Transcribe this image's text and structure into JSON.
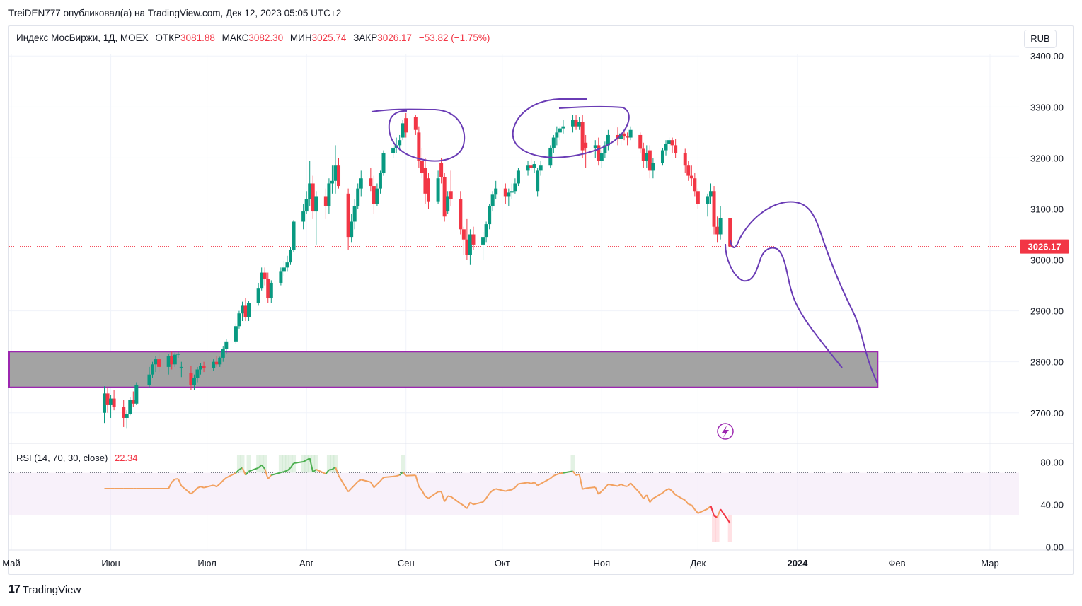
{
  "publisher_line": "TreiDEN777 опубликовал(а) на TradingView.com, Дек 12, 2023 05:05 UTC+2",
  "legend": {
    "symbol": "Индекс МосБиржи, 1Д, MOEX",
    "open_label": "ОТКР",
    "open_value": "3081.88",
    "high_label": "МАКС",
    "high_value": "3082.30",
    "low_label": "МИН",
    "low_value": "3025.74",
    "close_label": "ЗАКР",
    "close_value": "3026.17",
    "change": "−53.82 (−1.75%)"
  },
  "currency_button": "RUB",
  "rsi": {
    "title": "RSI (14, 70, 30, close)",
    "value": "22.34"
  },
  "footer": {
    "logo": "17",
    "brand": "TradingView"
  },
  "colors": {
    "up": "#089981",
    "down": "#f23645",
    "rsi_line": "#f2a15f",
    "drawing": "#6a3cb5",
    "zone_fill": "#a3a3a3",
    "zone_border": "#9c27b0"
  },
  "chart_data": {
    "type": "candlestick",
    "title": "Индекс МосБиржи, 1Д, MOEX",
    "y_ticks": [
      "3400.00",
      "3300.00",
      "3200.00",
      "3100.00",
      "3000.00",
      "2900.00",
      "2800.00",
      "2700.00"
    ],
    "ylim": [
      2640,
      3460
    ],
    "last_price_label": "3026.17",
    "last_price": 3026.17,
    "x_tick_labels": [
      "Май",
      "Июн",
      "Июл",
      "Авг",
      "Сен",
      "Окт",
      "Ноя",
      "Дек",
      "2024",
      "Фев",
      "Мар"
    ],
    "support_zone": [
      2750,
      2820
    ],
    "candles": [
      {
        "date": "2023-05-30",
        "o": 2700,
        "h": 2752,
        "l": 2680,
        "c": 2738
      },
      {
        "date": "2023-05-31",
        "o": 2738,
        "h": 2750,
        "l": 2700,
        "c": 2715
      },
      {
        "date": "2023-06-01",
        "o": 2715,
        "h": 2735,
        "l": 2690,
        "c": 2728
      },
      {
        "date": "2023-06-02",
        "o": 2728,
        "h": 2745,
        "l": 2705,
        "c": 2712
      },
      {
        "date": "2023-06-05",
        "o": 2712,
        "h": 2725,
        "l": 2672,
        "c": 2690
      },
      {
        "date": "2023-06-06",
        "o": 2690,
        "h": 2705,
        "l": 2670,
        "c": 2698
      },
      {
        "date": "2023-06-07",
        "o": 2698,
        "h": 2730,
        "l": 2695,
        "c": 2725
      },
      {
        "date": "2023-06-08",
        "o": 2725,
        "h": 2742,
        "l": 2712,
        "c": 2718
      },
      {
        "date": "2023-06-09",
        "o": 2718,
        "h": 2760,
        "l": 2715,
        "c": 2755
      },
      {
        "date": "2023-06-13",
        "o": 2755,
        "h": 2790,
        "l": 2750,
        "c": 2775
      },
      {
        "date": "2023-06-14",
        "o": 2775,
        "h": 2800,
        "l": 2768,
        "c": 2795
      },
      {
        "date": "2023-06-15",
        "o": 2795,
        "h": 2812,
        "l": 2780,
        "c": 2805
      },
      {
        "date": "2023-06-16",
        "o": 2805,
        "h": 2815,
        "l": 2780,
        "c": 2790
      },
      {
        "date": "2023-06-19",
        "o": 2790,
        "h": 2815,
        "l": 2775,
        "c": 2812
      },
      {
        "date": "2023-06-20",
        "o": 2812,
        "h": 2820,
        "l": 2785,
        "c": 2795
      },
      {
        "date": "2023-06-21",
        "o": 2795,
        "h": 2818,
        "l": 2790,
        "c": 2814
      },
      {
        "date": "2023-06-22",
        "o": 2814,
        "h": 2820,
        "l": 2808,
        "c": 2816
      },
      {
        "date": "2023-06-23",
        "o": 2790,
        "h": 2800,
        "l": 2770,
        "c": 2790
      },
      {
        "date": "2023-06-26",
        "o": 2778,
        "h": 2792,
        "l": 2745,
        "c": 2755
      },
      {
        "date": "2023-06-27",
        "o": 2755,
        "h": 2775,
        "l": 2745,
        "c": 2768
      },
      {
        "date": "2023-06-28",
        "o": 2768,
        "h": 2790,
        "l": 2760,
        "c": 2785
      },
      {
        "date": "2023-06-29",
        "o": 2785,
        "h": 2798,
        "l": 2775,
        "c": 2792
      },
      {
        "date": "2023-06-30",
        "o": 2792,
        "h": 2800,
        "l": 2780,
        "c": 2788
      },
      {
        "date": "2023-07-03",
        "o": 2788,
        "h": 2805,
        "l": 2782,
        "c": 2800
      },
      {
        "date": "2023-07-04",
        "o": 2800,
        "h": 2812,
        "l": 2790,
        "c": 2795
      },
      {
        "date": "2023-07-05",
        "o": 2795,
        "h": 2810,
        "l": 2790,
        "c": 2808
      },
      {
        "date": "2023-07-06",
        "o": 2808,
        "h": 2830,
        "l": 2800,
        "c": 2825
      },
      {
        "date": "2023-07-07",
        "o": 2825,
        "h": 2845,
        "l": 2815,
        "c": 2840
      },
      {
        "date": "2023-07-10",
        "o": 2840,
        "h": 2875,
        "l": 2835,
        "c": 2870
      },
      {
        "date": "2023-07-11",
        "o": 2870,
        "h": 2900,
        "l": 2865,
        "c": 2895
      },
      {
        "date": "2023-07-12",
        "o": 2895,
        "h": 2918,
        "l": 2880,
        "c": 2910
      },
      {
        "date": "2023-07-13",
        "o": 2910,
        "h": 2925,
        "l": 2880,
        "c": 2888
      },
      {
        "date": "2023-07-14",
        "o": 2888,
        "h": 2920,
        "l": 2880,
        "c": 2915
      },
      {
        "date": "2023-07-17",
        "o": 2915,
        "h": 2955,
        "l": 2910,
        "c": 2945
      },
      {
        "date": "2023-07-18",
        "o": 2945,
        "h": 2985,
        "l": 2940,
        "c": 2975
      },
      {
        "date": "2023-07-19",
        "o": 2975,
        "h": 2985,
        "l": 2950,
        "c": 2962
      },
      {
        "date": "2023-07-20",
        "o": 2962,
        "h": 2975,
        "l": 2915,
        "c": 2925
      },
      {
        "date": "2023-07-21",
        "o": 2925,
        "h": 2960,
        "l": 2915,
        "c": 2955
      },
      {
        "date": "2023-07-24",
        "o": 2955,
        "h": 2985,
        "l": 2950,
        "c": 2978
      },
      {
        "date": "2023-07-25",
        "o": 2978,
        "h": 2998,
        "l": 2968,
        "c": 2985
      },
      {
        "date": "2023-07-26",
        "o": 2985,
        "h": 3008,
        "l": 2978,
        "c": 2995
      },
      {
        "date": "2023-07-27",
        "o": 2995,
        "h": 3025,
        "l": 2990,
        "c": 3020
      },
      {
        "date": "2023-07-28",
        "o": 3020,
        "h": 3078,
        "l": 3015,
        "c": 3075
      },
      {
        "date": "2023-07-31",
        "o": 3075,
        "h": 3110,
        "l": 3060,
        "c": 3095
      },
      {
        "date": "2023-08-01",
        "o": 3095,
        "h": 3135,
        "l": 3090,
        "c": 3120
      },
      {
        "date": "2023-08-02",
        "o": 3120,
        "h": 3195,
        "l": 3105,
        "c": 3150
      },
      {
        "date": "2023-08-03",
        "o": 3150,
        "h": 3165,
        "l": 3080,
        "c": 3095
      },
      {
        "date": "2023-08-04",
        "o": 3095,
        "h": 3135,
        "l": 3030,
        "c": 3125
      },
      {
        "date": "2023-08-07",
        "o": 3125,
        "h": 3140,
        "l": 3080,
        "c": 3105
      },
      {
        "date": "2023-08-08",
        "o": 3105,
        "h": 3160,
        "l": 3090,
        "c": 3150
      },
      {
        "date": "2023-08-09",
        "o": 3150,
        "h": 3185,
        "l": 3130,
        "c": 3155
      },
      {
        "date": "2023-08-10",
        "o": 3155,
        "h": 3225,
        "l": 3130,
        "c": 3185
      },
      {
        "date": "2023-08-11",
        "o": 3185,
        "h": 3200,
        "l": 3140,
        "c": 3145
      },
      {
        "date": "2023-08-14",
        "o": 3130,
        "h": 3140,
        "l": 3020,
        "c": 3045
      },
      {
        "date": "2023-08-15",
        "o": 3045,
        "h": 3090,
        "l": 3035,
        "c": 3075
      },
      {
        "date": "2023-08-16",
        "o": 3075,
        "h": 3120,
        "l": 3060,
        "c": 3105
      },
      {
        "date": "2023-08-17",
        "o": 3105,
        "h": 3150,
        "l": 3100,
        "c": 3140
      },
      {
        "date": "2023-08-18",
        "o": 3140,
        "h": 3175,
        "l": 3125,
        "c": 3160
      },
      {
        "date": "2023-08-21",
        "o": 3160,
        "h": 3180,
        "l": 3135,
        "c": 3145
      },
      {
        "date": "2023-08-22",
        "o": 3145,
        "h": 3165,
        "l": 3090,
        "c": 3110
      },
      {
        "date": "2023-08-23",
        "o": 3110,
        "h": 3150,
        "l": 3105,
        "c": 3140
      },
      {
        "date": "2023-08-24",
        "o": 3140,
        "h": 3175,
        "l": 3130,
        "c": 3170
      },
      {
        "date": "2023-08-25",
        "o": 3170,
        "h": 3215,
        "l": 3165,
        "c": 3210
      },
      {
        "date": "2023-08-28",
        "o": 3210,
        "h": 3230,
        "l": 3200,
        "c": 3220
      },
      {
        "date": "2023-08-29",
        "o": 3220,
        "h": 3240,
        "l": 3210,
        "c": 3225
      },
      {
        "date": "2023-08-30",
        "o": 3225,
        "h": 3245,
        "l": 3215,
        "c": 3235
      },
      {
        "date": "2023-08-31",
        "o": 3240,
        "h": 3275,
        "l": 3235,
        "c": 3268
      },
      {
        "date": "2023-09-01",
        "o": 3278,
        "h": 3288,
        "l": 3240,
        "c": 3250
      },
      {
        "date": "2023-09-04",
        "o": 3280,
        "h": 3285,
        "l": 3245,
        "c": 3255
      },
      {
        "date": "2023-09-05",
        "o": 3250,
        "h": 3262,
        "l": 3180,
        "c": 3195
      },
      {
        "date": "2023-09-06",
        "o": 3195,
        "h": 3220,
        "l": 3160,
        "c": 3170
      },
      {
        "date": "2023-09-07",
        "o": 3180,
        "h": 3200,
        "l": 3110,
        "c": 3130
      },
      {
        "date": "2023-09-08",
        "o": 3160,
        "h": 3170,
        "l": 3100,
        "c": 3115
      },
      {
        "date": "2023-09-11",
        "o": 3115,
        "h": 3175,
        "l": 3110,
        "c": 3160
      },
      {
        "date": "2023-09-12",
        "o": 3190,
        "h": 3200,
        "l": 3150,
        "c": 3162
      },
      {
        "date": "2023-09-13",
        "o": 3162,
        "h": 3170,
        "l": 3075,
        "c": 3085
      },
      {
        "date": "2023-09-14",
        "o": 3095,
        "h": 3135,
        "l": 3090,
        "c": 3125
      },
      {
        "date": "2023-09-15",
        "o": 3135,
        "h": 3175,
        "l": 3105,
        "c": 3120
      },
      {
        "date": "2023-09-18",
        "o": 3120,
        "h": 3135,
        "l": 3050,
        "c": 3060
      },
      {
        "date": "2023-09-19",
        "o": 3060,
        "h": 3065,
        "l": 3010,
        "c": 3040
      },
      {
        "date": "2023-09-20",
        "o": 3040,
        "h": 3080,
        "l": 3000,
        "c": 3010
      },
      {
        "date": "2023-09-21",
        "o": 3010,
        "h": 3060,
        "l": 2990,
        "c": 3050
      },
      {
        "date": "2023-09-22",
        "o": 3050,
        "h": 3065,
        "l": 3020,
        "c": 3030
      },
      {
        "date": "2023-09-25",
        "o": 3030,
        "h": 3055,
        "l": 3000,
        "c": 3045
      },
      {
        "date": "2023-09-26",
        "o": 3045,
        "h": 3075,
        "l": 3035,
        "c": 3070
      },
      {
        "date": "2023-09-27",
        "o": 3070,
        "h": 3110,
        "l": 3060,
        "c": 3105
      },
      {
        "date": "2023-09-28",
        "o": 3105,
        "h": 3135,
        "l": 3095,
        "c": 3128
      },
      {
        "date": "2023-09-29",
        "o": 3128,
        "h": 3155,
        "l": 3120,
        "c": 3140
      },
      {
        "date": "2023-10-02",
        "o": 3140,
        "h": 3150,
        "l": 3110,
        "c": 3125
      },
      {
        "date": "2023-10-03",
        "o": 3125,
        "h": 3140,
        "l": 3105,
        "c": 3132
      },
      {
        "date": "2023-10-04",
        "o": 3132,
        "h": 3150,
        "l": 3120,
        "c": 3135
      },
      {
        "date": "2023-10-05",
        "o": 3135,
        "h": 3160,
        "l": 3130,
        "c": 3150
      },
      {
        "date": "2023-10-06",
        "o": 3150,
        "h": 3180,
        "l": 3145,
        "c": 3175
      },
      {
        "date": "2023-10-09",
        "o": 3175,
        "h": 3195,
        "l": 3165,
        "c": 3185
      },
      {
        "date": "2023-10-10",
        "o": 3185,
        "h": 3200,
        "l": 3175,
        "c": 3180
      },
      {
        "date": "2023-10-11",
        "o": 3180,
        "h": 3195,
        "l": 3170,
        "c": 3188
      },
      {
        "date": "2023-10-12",
        "o": 3135,
        "h": 3180,
        "l": 3125,
        "c": 3175
      },
      {
        "date": "2023-10-13",
        "o": 3175,
        "h": 3195,
        "l": 3165,
        "c": 3185
      },
      {
        "date": "2023-10-16",
        "o": 3185,
        "h": 3225,
        "l": 3180,
        "c": 3220
      },
      {
        "date": "2023-10-17",
        "o": 3220,
        "h": 3245,
        "l": 3210,
        "c": 3240
      },
      {
        "date": "2023-10-18",
        "o": 3240,
        "h": 3262,
        "l": 3225,
        "c": 3250
      },
      {
        "date": "2023-10-19",
        "o": 3250,
        "h": 3262,
        "l": 3235,
        "c": 3258
      },
      {
        "date": "2023-10-20",
        "o": 3258,
        "h": 3275,
        "l": 3248,
        "c": 3262
      },
      {
        "date": "2023-10-23",
        "o": 3262,
        "h": 3285,
        "l": 3250,
        "c": 3275
      },
      {
        "date": "2023-10-24",
        "o": 3275,
        "h": 3285,
        "l": 3255,
        "c": 3262
      },
      {
        "date": "2023-10-25",
        "o": 3262,
        "h": 3280,
        "l": 3255,
        "c": 3270
      },
      {
        "date": "2023-10-26",
        "o": 3270,
        "h": 3285,
        "l": 3200,
        "c": 3215
      },
      {
        "date": "2023-10-27",
        "o": 3230,
        "h": 3245,
        "l": 3180,
        "c": 3220
      },
      {
        "date": "2023-10-30",
        "o": 3220,
        "h": 3235,
        "l": 3200,
        "c": 3225
      },
      {
        "date": "2023-10-31",
        "o": 3225,
        "h": 3240,
        "l": 3185,
        "c": 3195
      },
      {
        "date": "2023-11-01",
        "o": 3195,
        "h": 3215,
        "l": 3180,
        "c": 3210
      },
      {
        "date": "2023-11-02",
        "o": 3210,
        "h": 3232,
        "l": 3200,
        "c": 3225
      },
      {
        "date": "2023-11-03",
        "o": 3225,
        "h": 3255,
        "l": 3215,
        "c": 3245
      },
      {
        "date": "2023-11-06",
        "o": 3245,
        "h": 3260,
        "l": 3225,
        "c": 3238
      },
      {
        "date": "2023-11-07",
        "o": 3238,
        "h": 3252,
        "l": 3225,
        "c": 3248
      },
      {
        "date": "2023-11-08",
        "o": 3248,
        "h": 3255,
        "l": 3235,
        "c": 3242
      },
      {
        "date": "2023-11-09",
        "o": 3242,
        "h": 3250,
        "l": 3225,
        "c": 3240
      },
      {
        "date": "2023-11-10",
        "o": 3240,
        "h": 3262,
        "l": 3235,
        "c": 3255
      },
      {
        "date": "2023-11-13",
        "o": 3245,
        "h": 3250,
        "l": 3210,
        "c": 3218
      },
      {
        "date": "2023-11-14",
        "o": 3218,
        "h": 3230,
        "l": 3180,
        "c": 3195
      },
      {
        "date": "2023-11-15",
        "o": 3195,
        "h": 3225,
        "l": 3180,
        "c": 3210
      },
      {
        "date": "2023-11-16",
        "o": 3215,
        "h": 3225,
        "l": 3160,
        "c": 3175
      },
      {
        "date": "2023-11-17",
        "o": 3175,
        "h": 3200,
        "l": 3160,
        "c": 3190
      },
      {
        "date": "2023-11-20",
        "o": 3190,
        "h": 3220,
        "l": 3185,
        "c": 3215
      },
      {
        "date": "2023-11-21",
        "o": 3215,
        "h": 3235,
        "l": 3205,
        "c": 3228
      },
      {
        "date": "2023-11-22",
        "o": 3228,
        "h": 3240,
        "l": 3215,
        "c": 3235
      },
      {
        "date": "2023-11-23",
        "o": 3235,
        "h": 3240,
        "l": 3210,
        "c": 3225
      },
      {
        "date": "2023-11-24",
        "o": 3225,
        "h": 3238,
        "l": 3200,
        "c": 3210
      },
      {
        "date": "2023-11-27",
        "o": 3210,
        "h": 3218,
        "l": 3170,
        "c": 3185
      },
      {
        "date": "2023-11-28",
        "o": 3185,
        "h": 3195,
        "l": 3155,
        "c": 3165
      },
      {
        "date": "2023-11-29",
        "o": 3165,
        "h": 3185,
        "l": 3145,
        "c": 3160
      },
      {
        "date": "2023-11-30",
        "o": 3160,
        "h": 3170,
        "l": 3125,
        "c": 3135
      },
      {
        "date": "2023-12-01",
        "o": 3135,
        "h": 3140,
        "l": 3100,
        "c": 3110
      },
      {
        "date": "2023-12-04",
        "o": 3110,
        "h": 3130,
        "l": 3085,
        "c": 3125
      },
      {
        "date": "2023-12-05",
        "o": 3125,
        "h": 3150,
        "l": 3110,
        "c": 3135
      },
      {
        "date": "2023-12-06",
        "o": 3135,
        "h": 3145,
        "l": 3050,
        "c": 3065
      },
      {
        "date": "2023-12-07",
        "o": 3065,
        "h": 3085,
        "l": 3035,
        "c": 3050
      },
      {
        "date": "2023-12-08",
        "o": 3050,
        "h": 3105,
        "l": 3040,
        "c": 3082
      },
      {
        "date": "2023-12-11",
        "o": 3081.88,
        "h": 3082.3,
        "l": 3025.74,
        "c": 3026.17
      }
    ],
    "rsi": {
      "period": 14,
      "upper": 70,
      "lower": 30,
      "source": "close",
      "last": 22.34,
      "y_ticks": [
        "80.00",
        "40.00",
        "0.00"
      ],
      "ylim": [
        -3,
        97
      ]
    }
  }
}
